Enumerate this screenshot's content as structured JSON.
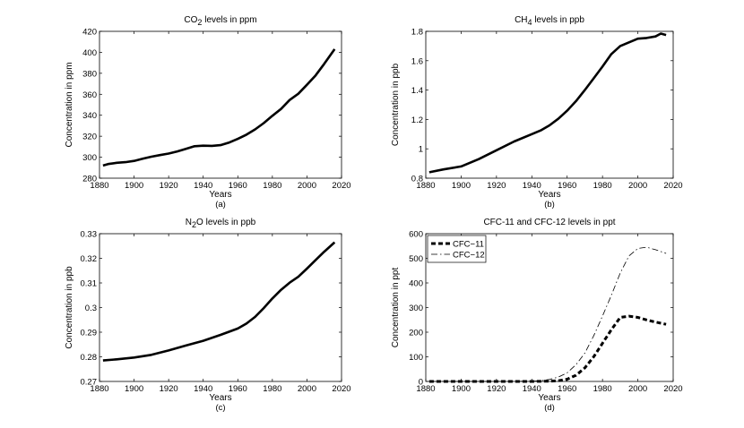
{
  "chart_data": [
    {
      "type": "line",
      "title": "CO2 levels in ppm",
      "title_main": "CO",
      "title_sub": "2",
      "title_rest": " levels in ppm",
      "xlabel": "Years",
      "ylabel": "Concentration in ppm",
      "caption": "(a)",
      "xlim": [
        1880,
        2020
      ],
      "ylim": [
        280,
        420
      ],
      "xticks": [
        1880,
        1900,
        1920,
        1940,
        1960,
        1980,
        2000,
        2020
      ],
      "yticks": [
        280,
        300,
        320,
        340,
        360,
        380,
        400,
        420
      ],
      "ytick_labels": [
        "280",
        "300",
        "320",
        "340",
        "360",
        "380",
        "400",
        "420"
      ],
      "series": [
        {
          "name": "CO2",
          "style": "solid-thick",
          "x": [
            1882,
            1885,
            1890,
            1895,
            1900,
            1905,
            1910,
            1915,
            1920,
            1925,
            1930,
            1935,
            1940,
            1945,
            1950,
            1955,
            1960,
            1965,
            1970,
            1975,
            1980,
            1985,
            1990,
            1995,
            2000,
            2005,
            2010,
            2016
          ],
          "y": [
            292,
            293.5,
            294.7,
            295.3,
            296.5,
            298.5,
            300.5,
            302,
            303.5,
            305.5,
            308,
            310.5,
            311,
            310.8,
            311.5,
            314,
            317.5,
            321.5,
            326.5,
            332.5,
            339.5,
            346,
            354.5,
            360.5,
            369,
            378,
            389,
            403
          ]
        }
      ]
    },
    {
      "type": "line",
      "title": "CH4 levels in ppb",
      "title_main": "CH",
      "title_sub": "4",
      "title_rest": " levels in ppb",
      "xlabel": "Years",
      "ylabel": "Concentration in ppb",
      "caption": "(b)",
      "xlim": [
        1880,
        2020
      ],
      "ylim": [
        0.8,
        1.8
      ],
      "xticks": [
        1880,
        1900,
        1920,
        1940,
        1960,
        1980,
        2000,
        2020
      ],
      "yticks": [
        0.8,
        1.0,
        1.2,
        1.4,
        1.6,
        1.8
      ],
      "ytick_labels": [
        "0.8",
        "1",
        "1.2",
        "1.4",
        "1.6",
        "1.8"
      ],
      "series": [
        {
          "name": "CH4",
          "style": "solid-thick",
          "x": [
            1882,
            1890,
            1900,
            1910,
            1920,
            1930,
            1940,
            1945,
            1950,
            1955,
            1960,
            1965,
            1970,
            1975,
            1980,
            1985,
            1990,
            1995,
            2000,
            2005,
            2010,
            2013,
            2016
          ],
          "y": [
            0.84,
            0.86,
            0.88,
            0.93,
            0.99,
            1.05,
            1.1,
            1.125,
            1.16,
            1.205,
            1.26,
            1.325,
            1.4,
            1.48,
            1.56,
            1.645,
            1.7,
            1.725,
            1.75,
            1.755,
            1.765,
            1.785,
            1.775
          ]
        }
      ]
    },
    {
      "type": "line",
      "title": "N2O levels in ppb",
      "title_main": "N",
      "title_sub": "2",
      "title_rest": "O levels in ppb",
      "xlabel": "Years",
      "ylabel": "Concentration in ppb",
      "caption": "(c)",
      "xlim": [
        1880,
        2020
      ],
      "ylim": [
        0.27,
        0.33
      ],
      "xticks": [
        1880,
        1900,
        1920,
        1940,
        1960,
        1980,
        2000,
        2020
      ],
      "yticks": [
        0.27,
        0.28,
        0.29,
        0.3,
        0.31,
        0.32,
        0.33
      ],
      "ytick_labels": [
        "0.27",
        "0.28",
        "0.29",
        "0.3",
        "0.31",
        "0.32",
        "0.33"
      ],
      "series": [
        {
          "name": "N2O",
          "style": "solid-thick",
          "x": [
            1882,
            1890,
            1900,
            1910,
            1920,
            1930,
            1940,
            1950,
            1960,
            1965,
            1970,
            1975,
            1980,
            1985,
            1990,
            1995,
            2000,
            2005,
            2010,
            2016
          ],
          "y": [
            0.2785,
            0.279,
            0.2797,
            0.2808,
            0.2826,
            0.2846,
            0.2865,
            0.2889,
            0.2915,
            0.2935,
            0.2962,
            0.2998,
            0.3037,
            0.3072,
            0.3101,
            0.3125,
            0.3158,
            0.3193,
            0.3227,
            0.3265
          ]
        }
      ]
    },
    {
      "type": "line",
      "title": "CFC-11 and CFC-12 levels in ppt",
      "title_main": "CFC-11 and CFC-12 levels in ppt",
      "title_sub": "",
      "title_rest": "",
      "xlabel": "Years",
      "ylabel": "Concentration in ppt",
      "caption": "(d)",
      "xlim": [
        1880,
        2020
      ],
      "ylim": [
        0,
        600
      ],
      "xticks": [
        1880,
        1900,
        1920,
        1940,
        1960,
        1980,
        2000,
        2020
      ],
      "yticks": [
        0,
        100,
        200,
        300,
        400,
        500,
        600
      ],
      "ytick_labels": [
        "0",
        "100",
        "200",
        "300",
        "400",
        "500",
        "600"
      ],
      "legend": "top-left",
      "series": [
        {
          "name": "CFC−11",
          "style": "dashed-thick",
          "x": [
            1882,
            1900,
            1920,
            1940,
            1950,
            1955,
            1960,
            1965,
            1970,
            1975,
            1980,
            1985,
            1990,
            1995,
            2000,
            2005,
            2010,
            2016
          ],
          "y": [
            0,
            0,
            0,
            0,
            1,
            3,
            9,
            25,
            55,
            100,
            155,
            210,
            260,
            265,
            260,
            250,
            241,
            232
          ]
        },
        {
          "name": "CFC−12",
          "style": "dashdot-thin",
          "x": [
            1882,
            1900,
            1920,
            1940,
            1945,
            1950,
            1955,
            1960,
            1965,
            1970,
            1975,
            1980,
            1985,
            1990,
            1995,
            2000,
            2005,
            2010,
            2016
          ],
          "y": [
            0,
            0,
            0,
            1,
            3,
            8,
            18,
            35,
            68,
            115,
            185,
            265,
            350,
            440,
            510,
            540,
            545,
            535,
            520
          ]
        }
      ]
    }
  ]
}
